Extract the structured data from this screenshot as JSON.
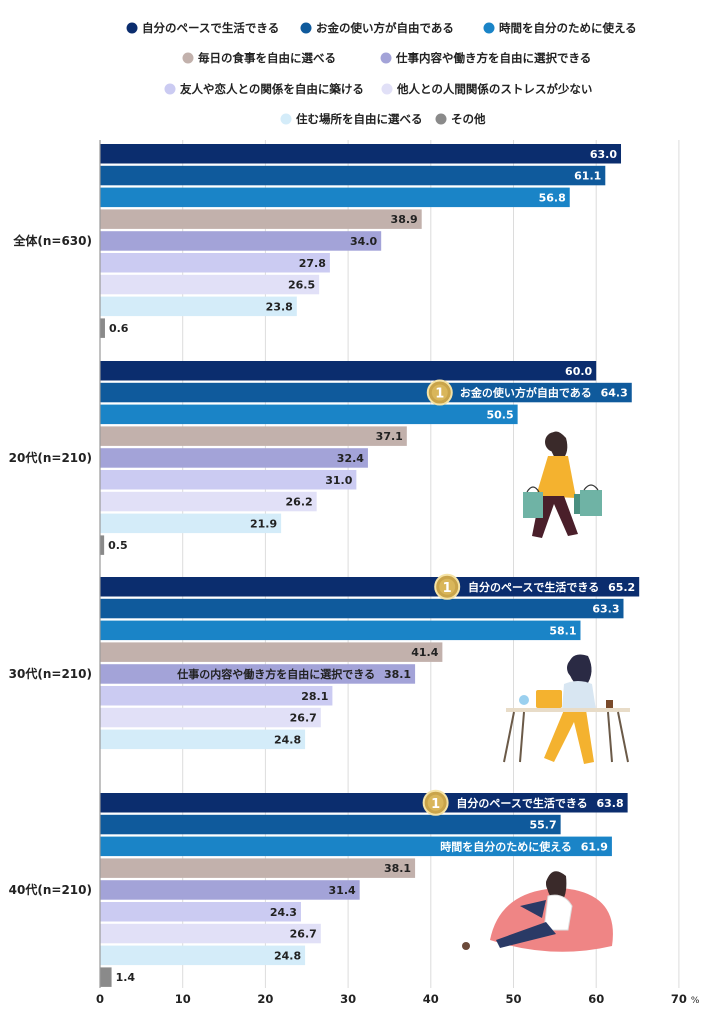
{
  "chart_data": {
    "type": "bar",
    "orientation": "horizontal",
    "title": "",
    "xlabel": "",
    "unit": "%",
    "xlim": [
      0,
      70
    ],
    "xticks": [
      0,
      10,
      20,
      30,
      40,
      50,
      60,
      70
    ],
    "grid": true,
    "legend_position": "top",
    "categories": [
      "全体(n=630)",
      "20代(n=210)",
      "30代(n=210)",
      "40代(n=210)"
    ],
    "series": [
      {
        "name": "自分のペースで生活できる",
        "color": "#0b2d6e",
        "values": [
          63.0,
          60.0,
          65.2,
          63.8
        ]
      },
      {
        "name": "お金の使い方が自由である",
        "color": "#0f5a9c",
        "values": [
          61.1,
          64.3,
          63.3,
          55.7
        ]
      },
      {
        "name": "時間を自分のために使える",
        "color": "#1a84c7",
        "values": [
          56.8,
          50.5,
          58.1,
          61.9
        ]
      },
      {
        "name": "毎日の食事を自由に選べる",
        "color": "#c2b1ac",
        "values": [
          38.9,
          37.1,
          41.4,
          38.1
        ]
      },
      {
        "name": "仕事内容や働き方を自由に選択できる",
        "color": "#a3a3d8",
        "values": [
          34.0,
          32.4,
          38.1,
          31.4
        ]
      },
      {
        "name": "友人や恋人との関係を自由に築ける",
        "color": "#cbcbf2",
        "values": [
          27.8,
          31.0,
          28.1,
          24.3
        ]
      },
      {
        "name": "他人との人間関係のストレスが少ない",
        "color": "#e1e0f7",
        "values": [
          26.5,
          26.2,
          26.7,
          26.7
        ]
      },
      {
        "name": "住む場所を自由に選べる",
        "color": "#d4ecf9",
        "values": [
          23.8,
          21.9,
          24.8,
          24.8
        ]
      },
      {
        "name": "その他",
        "color": "#8a8a8a",
        "values": [
          0.6,
          0.5,
          null,
          1.4
        ]
      }
    ],
    "value_labels": [
      [
        "63.0",
        "61.1",
        "56.8",
        "38.9",
        "34.0",
        "27.8",
        "26.5",
        "23.8",
        "0.6"
      ],
      [
        "60.0",
        "64.3",
        "50.5",
        "37.1",
        "32.4",
        "31.0",
        "26.2",
        "21.9",
        "0.5"
      ],
      [
        "65.2",
        "63.3",
        "58.1",
        "41.4",
        "38.1",
        "28.1",
        "26.7",
        "24.8",
        ""
      ],
      [
        "63.8",
        "55.7",
        "61.9",
        "38.1",
        "31.4",
        "24.3",
        "26.7",
        "24.8",
        "1.4"
      ]
    ],
    "annotations": [
      {
        "group": 1,
        "series": 1,
        "text": "お金の使い方が自由である",
        "badge": "1"
      },
      {
        "group": 2,
        "series": 0,
        "text": "自分のペースで生活できる",
        "badge": "1"
      },
      {
        "group": 2,
        "series": 4,
        "text": "仕事の内容や働き方を自由に選択できる",
        "badge": ""
      },
      {
        "group": 3,
        "series": 0,
        "text": "自分のペースで生活できる",
        "badge": "1"
      },
      {
        "group": 3,
        "series": 2,
        "text": "時間を自分のために使える",
        "badge": ""
      }
    ]
  }
}
